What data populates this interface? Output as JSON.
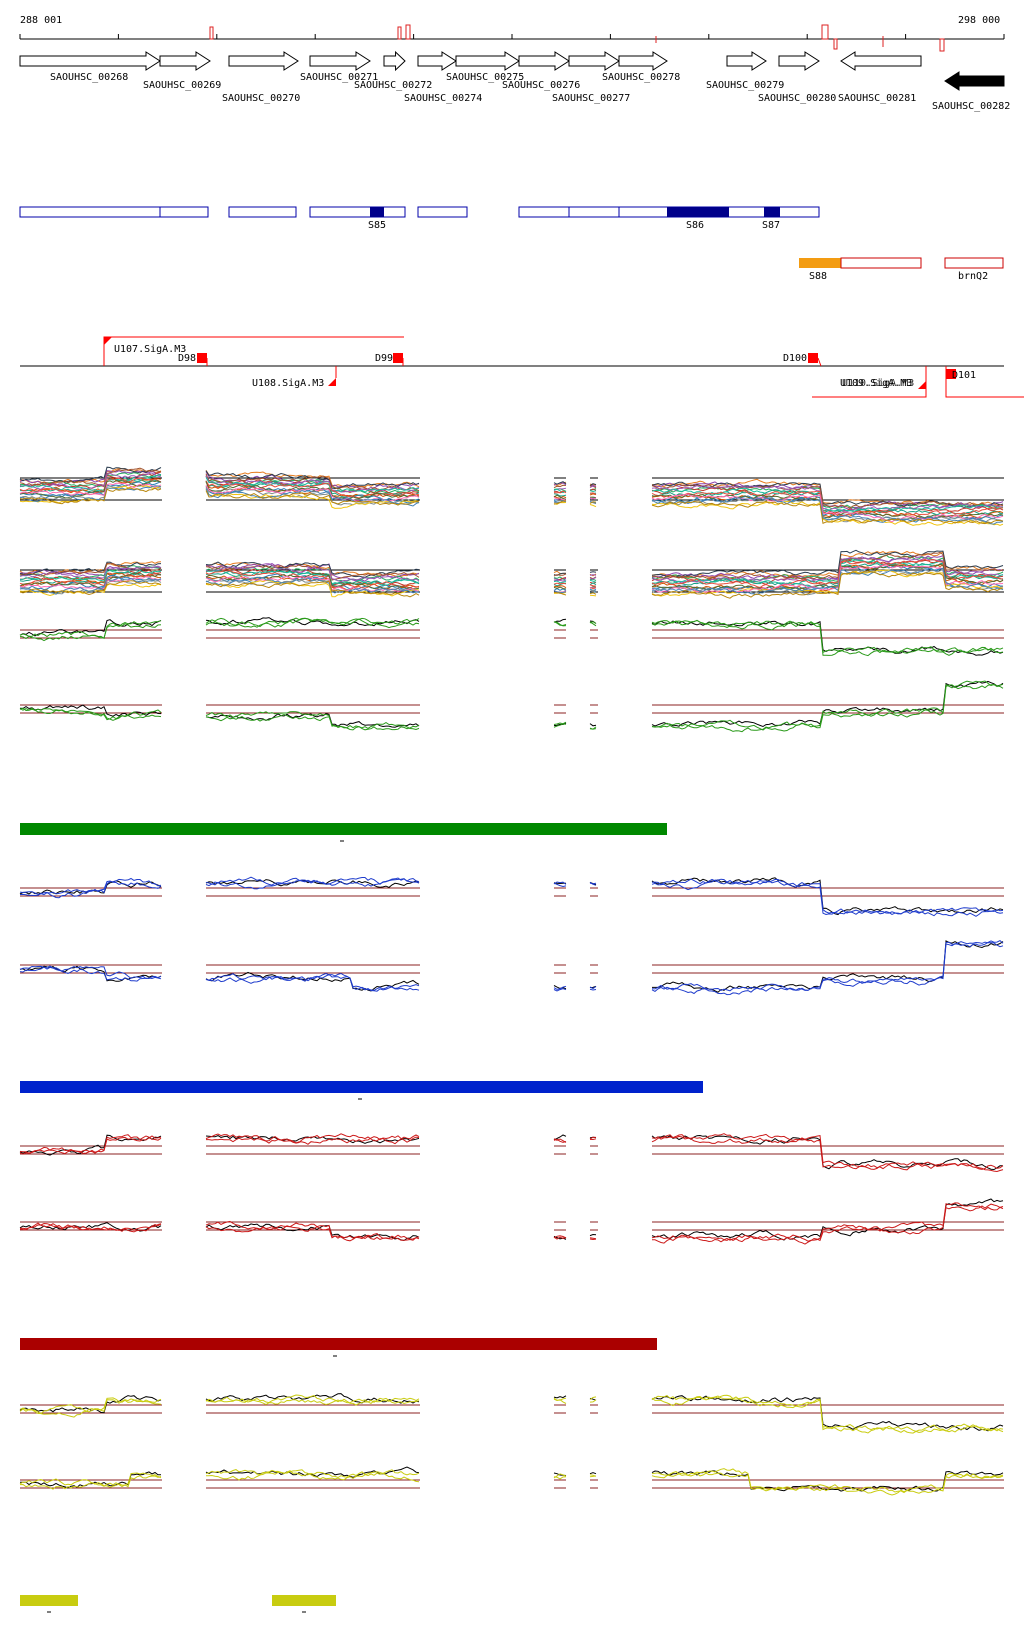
{
  "ruler": {
    "start_label": "288 001",
    "end_label": "298 000"
  },
  "genes": [
    {
      "id": "SAOUHSC_00268",
      "strand": "+",
      "filled": false
    },
    {
      "id": "SAOUHSC_00269",
      "strand": "+",
      "filled": false
    },
    {
      "id": "SAOUHSC_00270",
      "strand": "+",
      "filled": false
    },
    {
      "id": "SAOUHSC_00271",
      "strand": "+",
      "filled": false
    },
    {
      "id": "SAOUHSC_00272",
      "strand": "+",
      "filled": false
    },
    {
      "id": "SAOUHSC_00274",
      "strand": "+",
      "filled": false
    },
    {
      "id": "SAOUHSC_00275",
      "strand": "+",
      "filled": false
    },
    {
      "id": "SAOUHSC_00276",
      "strand": "+",
      "filled": false
    },
    {
      "id": "SAOUHSC_00277",
      "strand": "+",
      "filled": false
    },
    {
      "id": "SAOUHSC_00278",
      "strand": "+",
      "filled": false
    },
    {
      "id": "SAOUHSC_00279",
      "strand": "+",
      "filled": false
    },
    {
      "id": "SAOUHSC_00280",
      "strand": "+",
      "filled": false
    },
    {
      "id": "SAOUHSC_00281",
      "strand": "-",
      "filled": false
    },
    {
      "id": "SAOUHSC_00282",
      "strand": "-",
      "filled": true
    }
  ],
  "segments": {
    "blue_labels": [
      "S85",
      "S86",
      "S87"
    ],
    "orange_label": "S88",
    "red_box_label": "brnQ2",
    "colors": {
      "segment_outline": "#0000aa",
      "segment_fill": "#00008b",
      "orange": "#f39c12",
      "red_box": "#cc0000"
    }
  },
  "promoters": {
    "upstream_labels": [
      "U107.SigA.M3",
      "U108.SigA.M3",
      "U109.SigA.M3",
      "U110.SigA.M3"
    ],
    "downstream_labels": [
      "D98",
      "D99",
      "D100",
      "D101"
    ],
    "color": "#ff0000"
  },
  "condition_bars": [
    {
      "name": "green",
      "color": "#008800"
    },
    {
      "name": "blue",
      "color": "#0022cc"
    },
    {
      "name": "red",
      "color": "#aa0000"
    },
    {
      "name": "yellow",
      "color": "#c8cc10"
    }
  ],
  "profile_colors": {
    "green_pair": "#2a9a1a",
    "blue_pair": "#1f3ccc",
    "red_pair": "#cc1a1a",
    "yellow_pair": "#c9cc10",
    "reference": "#000000",
    "threshold": "#8b2020"
  }
}
